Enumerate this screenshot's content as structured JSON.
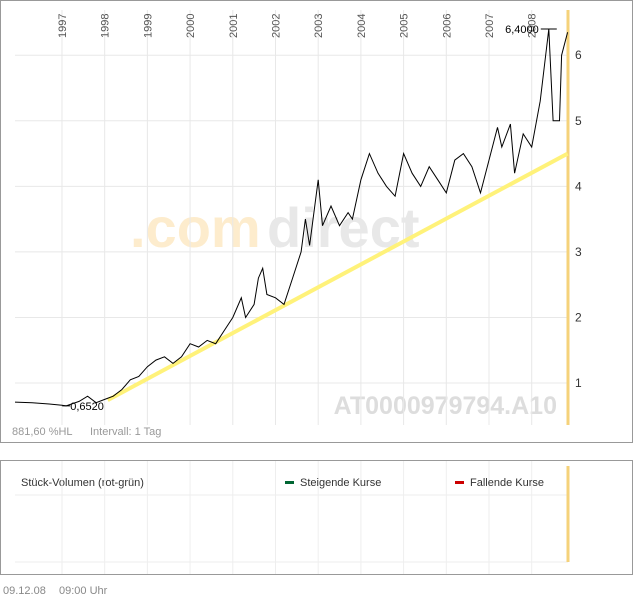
{
  "chart_data": {
    "type": "line",
    "xlim": [
      1995.9,
      2008.85
    ],
    "xticks": [
      1997,
      1998,
      1999,
      2000,
      2001,
      2002,
      2003,
      2004,
      2005,
      2006,
      2007,
      2008
    ],
    "ylim": [
      0.36,
      6.69
    ],
    "yticks": [
      1,
      2,
      3,
      4,
      5,
      6
    ],
    "grid": true,
    "series": [
      {
        "color": "#000000",
        "x": [
          1995.9,
          1996.3,
          1996.7,
          1997.0,
          1997.1,
          1997.4,
          1997.6,
          1997.8,
          1998.0,
          1998.2,
          1998.4,
          1998.6,
          1998.8,
          1999.0,
          1999.2,
          1999.4,
          1999.6,
          1999.8,
          2000.0,
          2000.2,
          2000.4,
          2000.6,
          2000.8,
          2001.0,
          2001.2,
          2001.3,
          2001.5,
          2001.6,
          2001.7,
          2001.8,
          2002.0,
          2002.2,
          2002.4,
          2002.6,
          2002.7,
          2002.8,
          2003.0,
          2003.1,
          2003.3,
          2003.5,
          2003.7,
          2003.8,
          2004.0,
          2004.2,
          2004.4,
          2004.6,
          2004.8,
          2005.0,
          2005.2,
          2005.4,
          2005.6,
          2005.8,
          2006.0,
          2006.2,
          2006.4,
          2006.6,
          2006.8,
          2007.0,
          2007.2,
          2007.3,
          2007.5,
          2007.6,
          2007.8,
          2008.0,
          2008.2,
          2008.4,
          2008.5,
          2008.65,
          2008.7,
          2008.84
        ],
        "values": [
          0.71,
          0.7,
          0.68,
          0.66,
          0.652,
          0.72,
          0.8,
          0.7,
          0.75,
          0.8,
          0.9,
          1.05,
          1.1,
          1.25,
          1.35,
          1.4,
          1.3,
          1.4,
          1.6,
          1.55,
          1.65,
          1.6,
          1.8,
          2.0,
          2.3,
          2.0,
          2.2,
          2.6,
          2.75,
          2.35,
          2.3,
          2.2,
          2.6,
          3.0,
          3.5,
          3.1,
          4.1,
          3.4,
          3.7,
          3.4,
          3.6,
          3.5,
          4.1,
          4.5,
          4.2,
          4.0,
          3.85,
          4.5,
          4.2,
          4.0,
          4.3,
          4.1,
          3.9,
          4.4,
          4.5,
          4.3,
          3.9,
          4.4,
          4.9,
          4.6,
          4.95,
          4.2,
          4.8,
          4.6,
          5.3,
          6.4,
          5.0,
          5.0,
          6.0,
          6.35
        ]
      }
    ],
    "trend": {
      "color": "#fff27a",
      "x": [
        1998.07,
        2008.84
      ],
      "values": [
        0.74,
        4.5
      ]
    },
    "high_label": {
      "x": 2008.4,
      "value": 6.4,
      "label": "6,4000"
    },
    "low_label": {
      "x": 1997.1,
      "value": 0.652,
      "label": "0,6520"
    },
    "watermark": {
      "part1": ".com",
      "part2": "direct"
    },
    "isin": "AT0000979794.A10",
    "footer_left": "881,60 %HL",
    "interval": "Intervall: 1 Tag"
  },
  "volume_panel": {
    "title": "Stück-Volumen (rot-grün)",
    "legend": [
      {
        "name": "Steigende Kurse",
        "color": "#006633"
      },
      {
        "name": "Fallende Kurse",
        "color": "#cc0000"
      }
    ]
  },
  "timestamp": {
    "date": "09.12.08",
    "time": "09:00 Uhr"
  }
}
